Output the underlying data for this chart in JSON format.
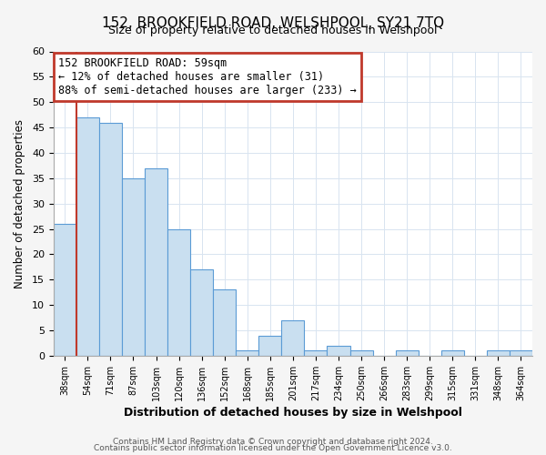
{
  "title": "152, BROOKFIELD ROAD, WELSHPOOL, SY21 7TQ",
  "subtitle": "Size of property relative to detached houses in Welshpool",
  "xlabel": "Distribution of detached houses by size in Welshpool",
  "ylabel": "Number of detached properties",
  "bin_labels": [
    "38sqm",
    "54sqm",
    "71sqm",
    "87sqm",
    "103sqm",
    "120sqm",
    "136sqm",
    "152sqm",
    "168sqm",
    "185sqm",
    "201sqm",
    "217sqm",
    "234sqm",
    "250sqm",
    "266sqm",
    "283sqm",
    "299sqm",
    "315sqm",
    "331sqm",
    "348sqm",
    "364sqm"
  ],
  "bar_values": [
    26,
    47,
    46,
    35,
    37,
    25,
    17,
    13,
    1,
    4,
    7,
    1,
    2,
    1,
    0,
    1,
    0,
    1,
    0,
    1,
    1
  ],
  "bar_color": "#c9dff0",
  "bar_edge_color": "#5b9bd5",
  "reference_line_x": 0.5,
  "reference_line_color": "#c0392b",
  "annotation_text": "152 BROOKFIELD ROAD: 59sqm\n← 12% of detached houses are smaller (31)\n88% of semi-detached houses are larger (233) →",
  "annotation_box_edge_color": "#c0392b",
  "ylim": [
    0,
    60
  ],
  "yticks": [
    0,
    5,
    10,
    15,
    20,
    25,
    30,
    35,
    40,
    45,
    50,
    55,
    60
  ],
  "footer_line1": "Contains HM Land Registry data © Crown copyright and database right 2024.",
  "footer_line2": "Contains public sector information licensed under the Open Government Licence v3.0.",
  "bg_color": "#f5f5f5",
  "plot_bg_color": "#ffffff",
  "grid_color": "#d8e4f0"
}
